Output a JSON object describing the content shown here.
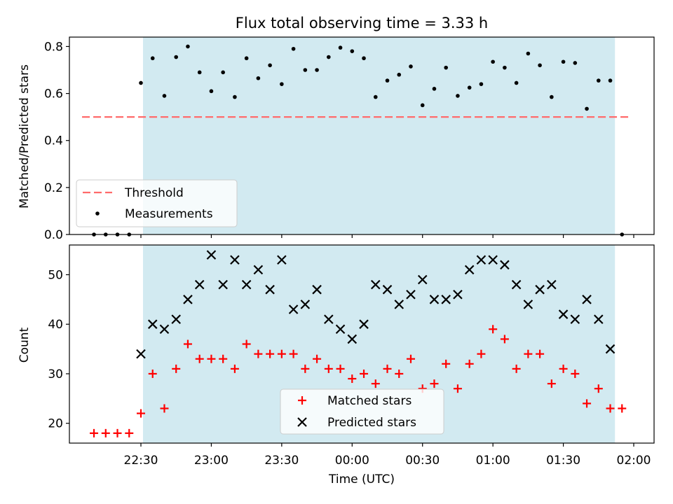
{
  "chart_data": [
    {
      "type": "scatter",
      "title": "Flux total observing time = 3.33 h",
      "xlabel": "",
      "ylabel": "Matched/Predicted stars",
      "ylim": [
        0,
        0.84
      ],
      "yticks": [
        "0.0",
        "0.2",
        "0.4",
        "0.6",
        "0.8"
      ],
      "ytick_values": [
        0,
        0.2,
        0.4,
        0.6,
        0.8
      ],
      "observing_window": [
        "22:30",
        "01:52"
      ],
      "threshold": {
        "name": "Threshold",
        "value": 0.5,
        "x_range": [
          "22:10",
          "02:00"
        ],
        "color": "#ff6b6b"
      },
      "series": [
        {
          "name": "Measurements",
          "color": "#000000",
          "x": [
            "22:10",
            "22:15",
            "22:20",
            "22:25",
            "22:30",
            "22:35",
            "22:40",
            "22:45",
            "22:50",
            "22:55",
            "23:00",
            "23:05",
            "23:10",
            "23:15",
            "23:20",
            "23:25",
            "23:30",
            "23:35",
            "23:40",
            "23:45",
            "23:50",
            "23:55",
            "00:00",
            "00:05",
            "00:10",
            "00:15",
            "00:20",
            "00:25",
            "00:30",
            "00:35",
            "00:40",
            "00:45",
            "00:50",
            "00:55",
            "01:00",
            "01:05",
            "01:10",
            "01:15",
            "01:20",
            "01:25",
            "01:30",
            "01:35",
            "01:40",
            "01:45",
            "01:50",
            "01:55"
          ],
          "y": [
            0.0,
            0.0,
            0.0,
            0.0,
            0.645,
            0.75,
            0.59,
            0.755,
            0.8,
            0.69,
            0.61,
            0.69,
            0.585,
            0.75,
            0.665,
            0.72,
            0.64,
            0.79,
            0.7,
            0.7,
            0.755,
            0.795,
            0.78,
            0.75,
            0.585,
            0.655,
            0.68,
            0.715,
            0.55,
            0.62,
            0.71,
            0.59,
            0.625,
            0.64,
            0.735,
            0.71,
            0.645,
            0.77,
            0.72,
            0.585,
            0.735,
            0.73,
            0.535,
            0.655,
            0.655,
            0.0
          ]
        }
      ],
      "legend": {
        "placement": "lower-left",
        "entries": [
          "Threshold",
          "Measurements"
        ]
      }
    },
    {
      "type": "scatter",
      "title": "",
      "xlabel": "Time (UTC)",
      "ylabel": "Count",
      "ylim": [
        16,
        56
      ],
      "yticks": [
        "20",
        "30",
        "40",
        "50"
      ],
      "ytick_values": [
        20,
        30,
        40,
        50
      ],
      "xticks": [
        "22:30",
        "23:00",
        "23:30",
        "00:00",
        "00:30",
        "01:00",
        "01:30",
        "02:00"
      ],
      "xlim": [
        "22:00",
        "02:05"
      ],
      "observing_window": [
        "22:30",
        "01:52"
      ],
      "series": [
        {
          "name": "Matched stars",
          "marker": "+",
          "color": "#ff0000",
          "x": [
            "22:10",
            "22:15",
            "22:20",
            "22:25",
            "22:30",
            "22:35",
            "22:40",
            "22:45",
            "22:50",
            "22:55",
            "23:00",
            "23:05",
            "23:10",
            "23:15",
            "23:20",
            "23:25",
            "23:30",
            "23:35",
            "23:40",
            "23:45",
            "23:50",
            "23:55",
            "00:00",
            "00:05",
            "00:10",
            "00:15",
            "00:20",
            "00:25",
            "00:30",
            "00:35",
            "00:40",
            "00:45",
            "00:50",
            "00:55",
            "01:00",
            "01:05",
            "01:10",
            "01:15",
            "01:20",
            "01:25",
            "01:30",
            "01:35",
            "01:40",
            "01:45",
            "01:50",
            "01:55"
          ],
          "y": [
            18,
            18,
            18,
            18,
            22,
            30,
            23,
            31,
            36,
            33,
            33,
            33,
            31,
            36,
            34,
            34,
            34,
            34,
            31,
            33,
            31,
            31,
            29,
            30,
            28,
            31,
            30,
            33,
            27,
            28,
            32,
            27,
            32,
            34,
            39,
            37,
            31,
            34,
            34,
            28,
            31,
            30,
            24,
            27,
            23,
            23
          ]
        },
        {
          "name": "Predicted stars",
          "marker": "x",
          "color": "#000000",
          "x": [
            "22:30",
            "22:35",
            "22:40",
            "22:45",
            "22:50",
            "22:55",
            "23:00",
            "23:05",
            "23:10",
            "23:15",
            "23:20",
            "23:25",
            "23:30",
            "23:35",
            "23:40",
            "23:45",
            "23:50",
            "23:55",
            "00:00",
            "00:05",
            "00:10",
            "00:15",
            "00:20",
            "00:25",
            "00:30",
            "00:35",
            "00:40",
            "00:45",
            "00:50",
            "00:55",
            "01:00",
            "01:05",
            "01:10",
            "01:15",
            "01:20",
            "01:25",
            "01:30",
            "01:35",
            "01:40",
            "01:45",
            "01:50"
          ],
          "y": [
            34,
            40,
            39,
            41,
            45,
            48,
            54,
            48,
            53,
            48,
            51,
            47,
            53,
            43,
            44,
            47,
            41,
            39,
            37,
            40,
            48,
            47,
            44,
            46,
            49,
            45,
            45,
            46,
            51,
            53,
            53,
            52,
            48,
            44,
            47,
            48,
            42,
            41,
            45,
            41,
            35
          ]
        }
      ],
      "legend": {
        "placement": "lower-center",
        "entries": [
          "Matched stars",
          "Predicted stars"
        ]
      }
    }
  ]
}
